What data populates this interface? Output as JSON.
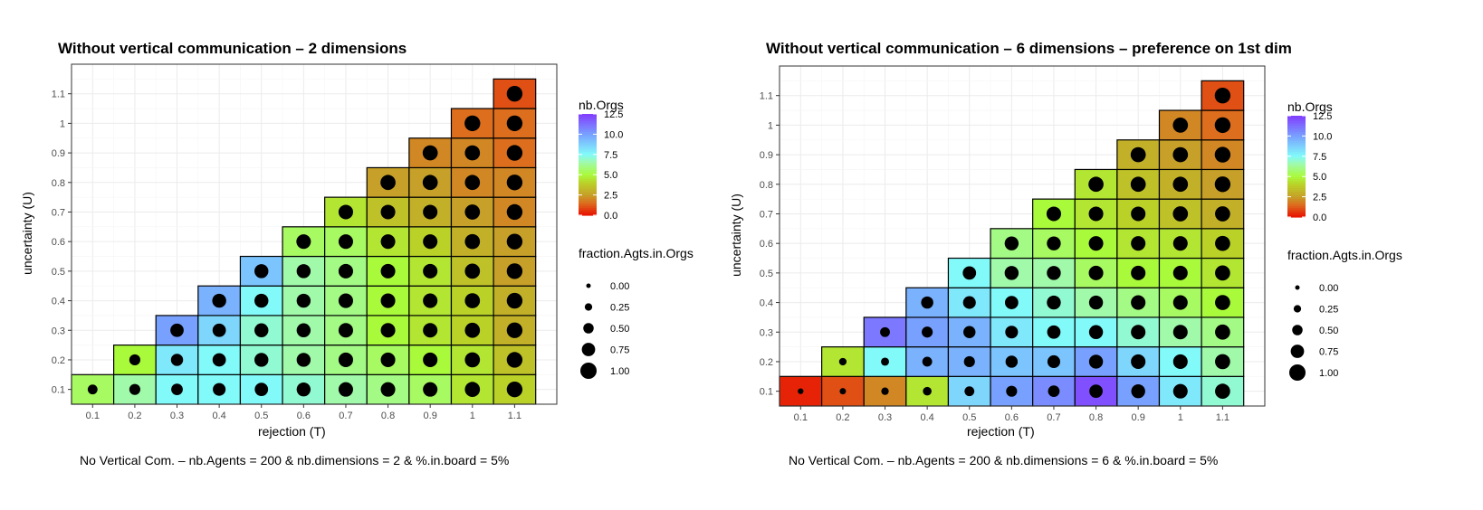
{
  "chart_data": [
    {
      "type": "heatmap",
      "title": "Without vertical communication – 2 dimensions",
      "xlabel": "rejection (T)",
      "ylabel": "uncertainty (U)",
      "caption": "No Vertical Com. – nb.Agents = 200 & nb.dimensions = 2 & %.in.board = 5%",
      "x_ticks": [
        "0.1",
        "0.2",
        "0.3",
        "0.4",
        "0.5",
        "0.6",
        "0.7",
        "0.8",
        "0.9",
        "1",
        "1.1"
      ],
      "y_ticks": [
        "0.1",
        "0.2",
        "0.3",
        "0.4",
        "0.5",
        "0.6",
        "0.7",
        "0.8",
        "0.9",
        "1",
        "1.1"
      ],
      "fill_legend": {
        "title": "nb.Orgs",
        "ticks": [
          "12.5",
          "10.0",
          "7.5",
          "5.0",
          "2.5",
          "0.0"
        ],
        "range": [
          0,
          12.5
        ]
      },
      "size_legend": {
        "title": "fraction.Agts.in.Orgs",
        "ticks": [
          "0.00",
          "0.25",
          "0.50",
          "0.75",
          "1.00"
        ]
      },
      "grid": true,
      "cells_columns": [
        "x_index",
        "y_index",
        "nb_orgs",
        "fraction_agts_in_orgs"
      ],
      "cells": [
        [
          0,
          0,
          5.5,
          0.45
        ],
        [
          1,
          0,
          6.5,
          0.55
        ],
        [
          1,
          1,
          5.0,
          0.55
        ],
        [
          2,
          0,
          7.5,
          0.6
        ],
        [
          2,
          1,
          8.0,
          0.65
        ],
        [
          2,
          2,
          10.0,
          0.75
        ],
        [
          3,
          0,
          7.5,
          0.7
        ],
        [
          3,
          1,
          7.5,
          0.75
        ],
        [
          3,
          2,
          8.5,
          0.75
        ],
        [
          3,
          3,
          9.5,
          0.8
        ],
        [
          4,
          0,
          7.5,
          0.75
        ],
        [
          4,
          1,
          7.0,
          0.8
        ],
        [
          4,
          2,
          7.0,
          0.8
        ],
        [
          4,
          3,
          7.5,
          0.8
        ],
        [
          4,
          4,
          9.0,
          0.8
        ],
        [
          5,
          0,
          7.0,
          0.8
        ],
        [
          5,
          1,
          6.5,
          0.8
        ],
        [
          5,
          2,
          6.5,
          0.8
        ],
        [
          5,
          3,
          6.5,
          0.8
        ],
        [
          5,
          4,
          6.5,
          0.8
        ],
        [
          5,
          5,
          5.5,
          0.85
        ],
        [
          6,
          0,
          6.5,
          0.85
        ],
        [
          6,
          1,
          6.0,
          0.85
        ],
        [
          6,
          2,
          6.0,
          0.85
        ],
        [
          6,
          3,
          6.0,
          0.85
        ],
        [
          6,
          4,
          6.0,
          0.85
        ],
        [
          6,
          5,
          5.5,
          0.85
        ],
        [
          6,
          6,
          4.5,
          0.85
        ],
        [
          7,
          0,
          6.0,
          0.85
        ],
        [
          7,
          1,
          5.5,
          0.85
        ],
        [
          7,
          2,
          5.0,
          0.85
        ],
        [
          7,
          3,
          5.0,
          0.85
        ],
        [
          7,
          4,
          5.0,
          0.85
        ],
        [
          7,
          5,
          4.5,
          0.85
        ],
        [
          7,
          6,
          3.5,
          0.85
        ],
        [
          7,
          7,
          2.5,
          0.9
        ],
        [
          8,
          0,
          5.5,
          0.85
        ],
        [
          8,
          1,
          5.0,
          0.85
        ],
        [
          8,
          2,
          4.5,
          0.85
        ],
        [
          8,
          3,
          4.5,
          0.85
        ],
        [
          8,
          4,
          4.5,
          0.85
        ],
        [
          8,
          5,
          4.0,
          0.85
        ],
        [
          8,
          6,
          3.0,
          0.85
        ],
        [
          8,
          7,
          2.5,
          0.9
        ],
        [
          8,
          8,
          2.0,
          0.9
        ],
        [
          9,
          0,
          4.5,
          0.9
        ],
        [
          9,
          1,
          4.5,
          0.9
        ],
        [
          9,
          2,
          4.0,
          0.9
        ],
        [
          9,
          3,
          4.0,
          0.9
        ],
        [
          9,
          4,
          3.5,
          0.9
        ],
        [
          9,
          5,
          3.0,
          0.9
        ],
        [
          9,
          6,
          2.5,
          0.9
        ],
        [
          9,
          7,
          2.0,
          0.9
        ],
        [
          9,
          8,
          2.0,
          0.9
        ],
        [
          9,
          9,
          1.5,
          0.95
        ],
        [
          10,
          0,
          4.0,
          0.95
        ],
        [
          10,
          1,
          3.5,
          0.95
        ],
        [
          10,
          2,
          3.0,
          0.95
        ],
        [
          10,
          3,
          3.0,
          0.95
        ],
        [
          10,
          4,
          2.5,
          0.95
        ],
        [
          10,
          5,
          2.5,
          0.95
        ],
        [
          10,
          6,
          2.0,
          0.95
        ],
        [
          10,
          7,
          2.0,
          0.95
        ],
        [
          10,
          8,
          1.5,
          0.95
        ],
        [
          10,
          9,
          1.5,
          0.95
        ],
        [
          10,
          10,
          1.0,
          0.95
        ]
      ]
    },
    {
      "type": "heatmap",
      "title": "Without vertical communication – 6 dimensions – preference on 1st dim",
      "xlabel": "rejection (T)",
      "ylabel": "uncertainty (U)",
      "caption": "No Vertical Com. – nb.Agents = 200 & nb.dimensions = 6 & %.in.board = 5%",
      "x_ticks": [
        "0.1",
        "0.2",
        "0.3",
        "0.4",
        "0.5",
        "0.6",
        "0.7",
        "0.8",
        "0.9",
        "1",
        "1.1"
      ],
      "y_ticks": [
        "0.1",
        "0.2",
        "0.3",
        "0.4",
        "0.5",
        "0.6",
        "0.7",
        "0.8",
        "0.9",
        "1",
        "1.1"
      ],
      "fill_legend": {
        "title": "nb.Orgs",
        "ticks": [
          "12.5",
          "10.0",
          "7.5",
          "5.0",
          "2.5",
          "0.0"
        ],
        "range": [
          0,
          12.5
        ]
      },
      "size_legend": {
        "title": "fraction.Agts.in.Orgs",
        "ticks": [
          "0.00",
          "0.25",
          "0.50",
          "0.75",
          "1.00"
        ]
      },
      "grid": true,
      "cells_columns": [
        "x_index",
        "y_index",
        "nb_orgs",
        "fraction_agts_in_orgs"
      ],
      "cells": [
        [
          0,
          0,
          0.3,
          0.1
        ],
        [
          1,
          0,
          1.0,
          0.15
        ],
        [
          1,
          1,
          4.5,
          0.25
        ],
        [
          2,
          0,
          2.0,
          0.25
        ],
        [
          2,
          1,
          7.5,
          0.3
        ],
        [
          2,
          2,
          11.0,
          0.45
        ],
        [
          3,
          0,
          4.5,
          0.35
        ],
        [
          3,
          1,
          9.5,
          0.45
        ],
        [
          3,
          2,
          10.0,
          0.55
        ],
        [
          3,
          3,
          9.5,
          0.65
        ],
        [
          4,
          0,
          8.5,
          0.45
        ],
        [
          4,
          1,
          9.5,
          0.55
        ],
        [
          4,
          2,
          9.5,
          0.65
        ],
        [
          4,
          3,
          8.0,
          0.7
        ],
        [
          4,
          4,
          7.5,
          0.75
        ],
        [
          5,
          0,
          10.0,
          0.55
        ],
        [
          5,
          1,
          9.0,
          0.65
        ],
        [
          5,
          2,
          8.0,
          0.7
        ],
        [
          5,
          3,
          7.5,
          0.75
        ],
        [
          5,
          4,
          6.5,
          0.8
        ],
        [
          5,
          5,
          6.0,
          0.8
        ],
        [
          6,
          0,
          10.5,
          0.6
        ],
        [
          6,
          1,
          9.0,
          0.7
        ],
        [
          6,
          2,
          7.5,
          0.75
        ],
        [
          6,
          3,
          7.0,
          0.8
        ],
        [
          6,
          4,
          6.5,
          0.8
        ],
        [
          6,
          5,
          5.5,
          0.8
        ],
        [
          6,
          6,
          5.0,
          0.85
        ],
        [
          7,
          0,
          12.0,
          0.75
        ],
        [
          7,
          1,
          10.0,
          0.8
        ],
        [
          7,
          2,
          7.5,
          0.8
        ],
        [
          7,
          3,
          6.5,
          0.8
        ],
        [
          7,
          4,
          5.5,
          0.85
        ],
        [
          7,
          5,
          5.0,
          0.85
        ],
        [
          7,
          6,
          4.5,
          0.85
        ],
        [
          7,
          7,
          4.5,
          0.9
        ],
        [
          8,
          0,
          10.0,
          0.8
        ],
        [
          8,
          1,
          8.5,
          0.85
        ],
        [
          8,
          2,
          7.0,
          0.85
        ],
        [
          8,
          3,
          6.0,
          0.85
        ],
        [
          8,
          4,
          5.0,
          0.85
        ],
        [
          8,
          5,
          4.5,
          0.85
        ],
        [
          8,
          6,
          4.0,
          0.85
        ],
        [
          8,
          7,
          3.5,
          0.9
        ],
        [
          8,
          8,
          3.0,
          0.9
        ],
        [
          9,
          0,
          8.0,
          0.85
        ],
        [
          9,
          1,
          7.5,
          0.85
        ],
        [
          9,
          2,
          6.5,
          0.85
        ],
        [
          9,
          3,
          5.5,
          0.85
        ],
        [
          9,
          4,
          5.0,
          0.85
        ],
        [
          9,
          5,
          4.5,
          0.85
        ],
        [
          9,
          6,
          3.5,
          0.9
        ],
        [
          9,
          7,
          3.0,
          0.9
        ],
        [
          9,
          8,
          2.5,
          0.9
        ],
        [
          9,
          9,
          2.0,
          0.9
        ],
        [
          10,
          0,
          7.0,
          0.9
        ],
        [
          10,
          1,
          6.5,
          0.9
        ],
        [
          10,
          2,
          6.0,
          0.9
        ],
        [
          10,
          3,
          5.0,
          0.9
        ],
        [
          10,
          4,
          4.5,
          0.9
        ],
        [
          10,
          5,
          4.0,
          0.9
        ],
        [
          10,
          6,
          3.0,
          0.9
        ],
        [
          10,
          7,
          2.5,
          0.95
        ],
        [
          10,
          8,
          2.0,
          0.95
        ],
        [
          10,
          9,
          1.5,
          0.95
        ],
        [
          10,
          10,
          1.0,
          0.95
        ]
      ]
    }
  ]
}
